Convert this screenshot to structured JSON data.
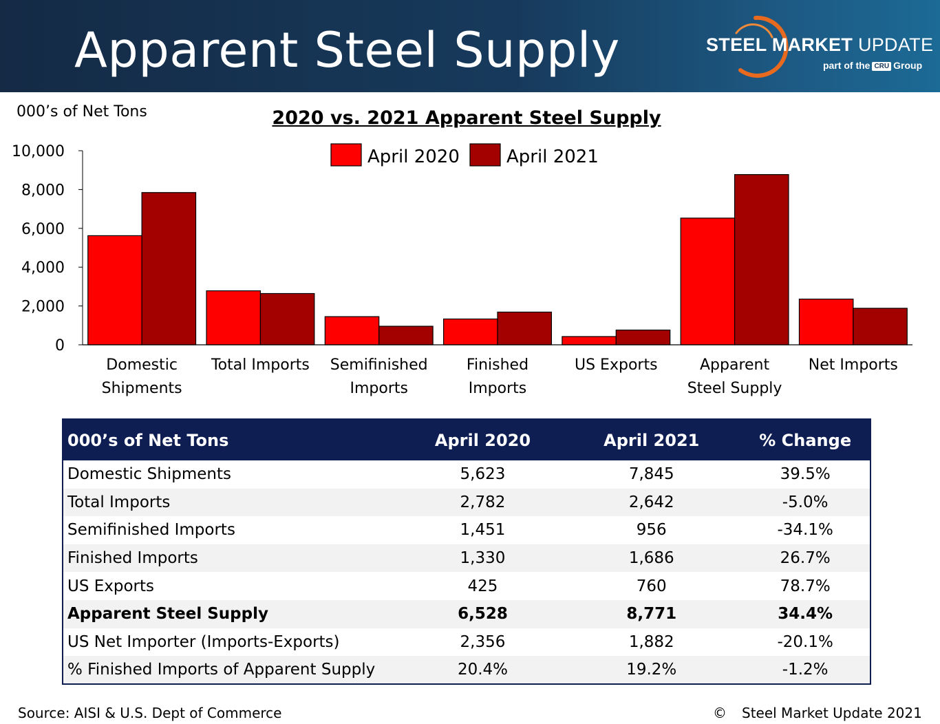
{
  "header": {
    "title": "Apparent Steel Supply",
    "logo_bold": "STEEL MARKET",
    "logo_light": "UPDATE",
    "logo_sub_prefix": "part of the",
    "logo_sub_box": "CRU",
    "logo_sub_suffix": "Group"
  },
  "colors": {
    "header_left": "#142a45",
    "header_right": "#1c6a96",
    "april_2020": "#ff0000",
    "april_2021": "#a30000",
    "table_header": "#0e1d52",
    "logo_arc": "#e86a1f"
  },
  "units_label": "000’s of Net Tons",
  "chart_data": {
    "type": "bar",
    "title": "2020 vs. 2021 Apparent Steel Supply",
    "ylabel": "000’s of Net Tons",
    "xlabel": "",
    "categories": [
      [
        "Domestic",
        "Shipments"
      ],
      [
        "Total Imports"
      ],
      [
        "Semifinished",
        "Imports"
      ],
      [
        "Finished",
        "Imports"
      ],
      [
        "US Exports"
      ],
      [
        "Apparent",
        "Steel Supply"
      ],
      [
        "Net Imports"
      ]
    ],
    "series": [
      {
        "name": "April 2020",
        "color": "#ff0000",
        "values": [
          5623,
          2782,
          1451,
          1330,
          425,
          6528,
          2356
        ]
      },
      {
        "name": "April 2021",
        "color": "#a30000",
        "values": [
          7845,
          2642,
          956,
          1686,
          760,
          8771,
          1882
        ]
      }
    ],
    "ylim": [
      0,
      10000
    ],
    "yticks": [
      0,
      2000,
      4000,
      6000,
      8000,
      10000
    ],
    "ytick_labels": [
      "0",
      "2,000",
      "4,000",
      "6,000",
      "8,000",
      "10,000"
    ],
    "grid": false,
    "legend": "top-center"
  },
  "table": {
    "headers": [
      "000’s of Net Tons",
      "April 2020",
      "April 2021",
      "% Change"
    ],
    "rows": [
      [
        "Domestic Shipments",
        "5,623",
        "7,845",
        "39.5%"
      ],
      [
        "Total Imports",
        "2,782",
        "2,642",
        "-5.0%"
      ],
      [
        "Semifinished Imports",
        "1,451",
        "956",
        "-34.1%"
      ],
      [
        "Finished Imports",
        "1,330",
        "1,686",
        "26.7%"
      ],
      [
        "US Exports",
        "425",
        "760",
        "78.7%"
      ],
      [
        "Apparent Steel Supply",
        "6,528",
        "8,771",
        "34.4%"
      ],
      [
        "US Net Importer (Imports-Exports)",
        "2,356",
        "1,882",
        "-20.1%"
      ],
      [
        "% Finished Imports of Apparent Supply",
        "20.4%",
        "19.2%",
        "-1.2%"
      ]
    ]
  },
  "footer": {
    "source": "Source:  AISI & U.S. Dept of Commerce",
    "copyright_symbol": "©",
    "copyright": "Steel Market Update 2021"
  }
}
